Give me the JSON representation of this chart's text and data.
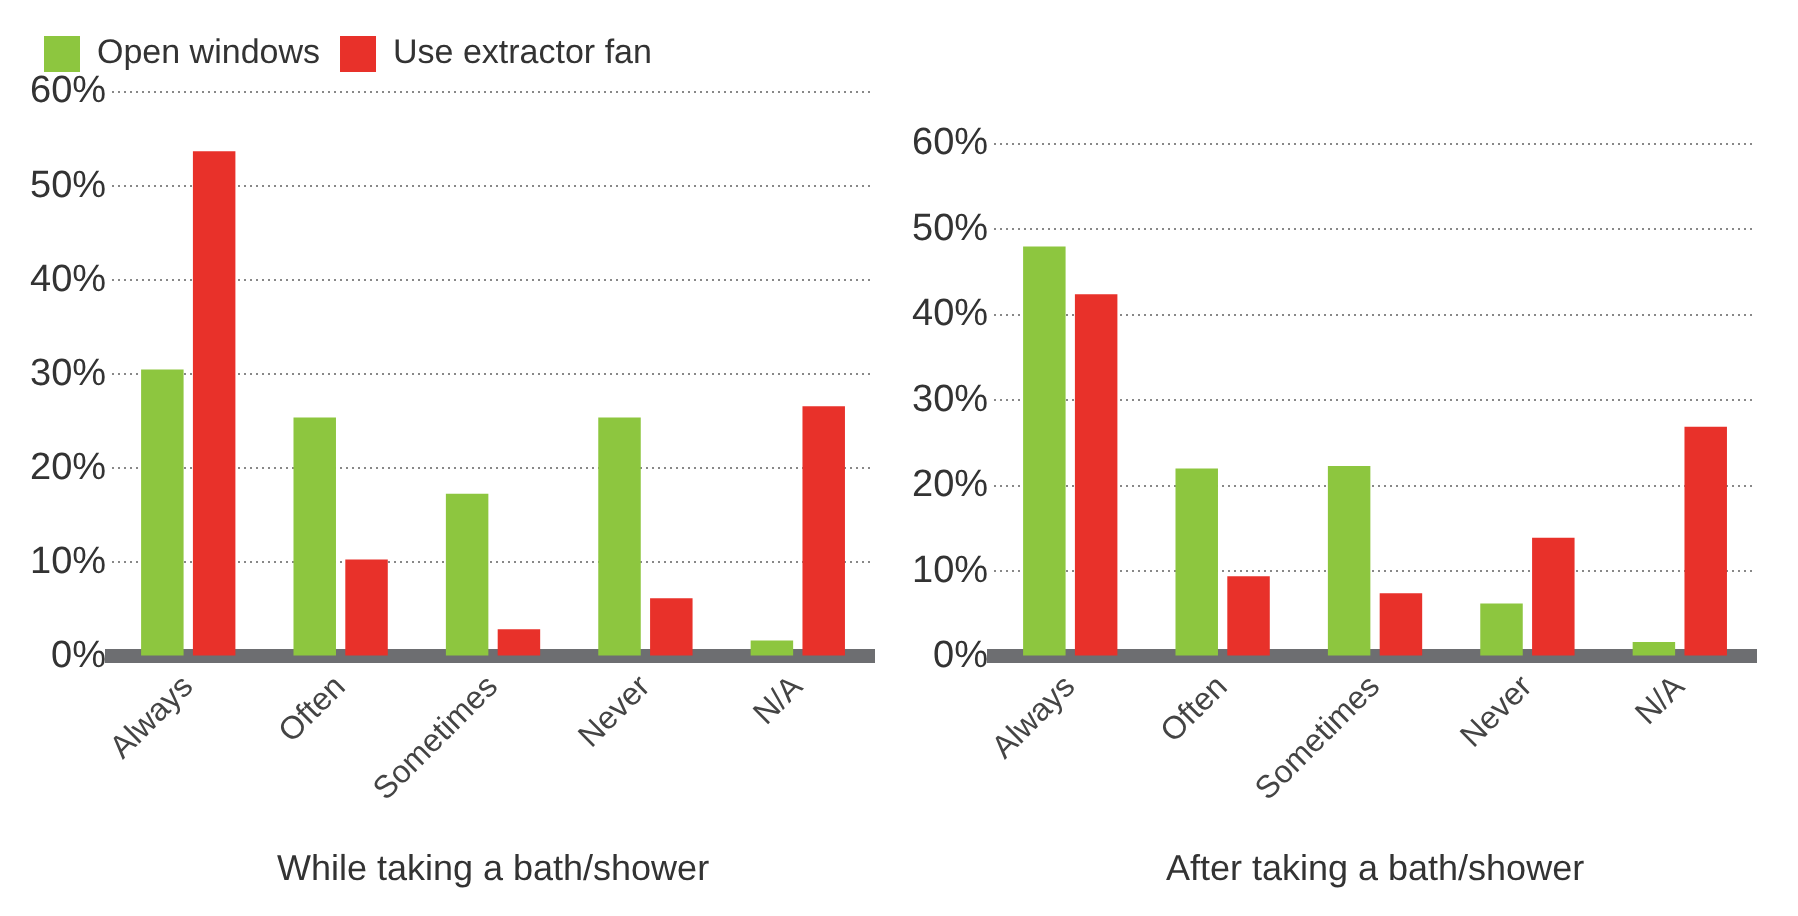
{
  "chart_data": [
    {
      "type": "bar",
      "xlabel": "While taking a bath/shower",
      "categories": [
        "Always",
        "Often",
        "Sometimes",
        "Never",
        "N/A"
      ],
      "ylim": [
        0,
        60
      ],
      "yticks": [
        {
          "value": 0,
          "label": "0%"
        },
        {
          "value": 10,
          "label": "10%"
        },
        {
          "value": 20,
          "label": "20%"
        },
        {
          "value": 30,
          "label": "30%"
        },
        {
          "value": 40,
          "label": "40%"
        },
        {
          "value": 50,
          "label": "50%"
        },
        {
          "value": 60,
          "label": "60%"
        }
      ],
      "grid": "y",
      "legend": "top left",
      "series": [
        {
          "name": "Open windows",
          "color": "#8dc63f",
          "values": [
            30.5,
            25.4,
            17.3,
            25.4,
            1.7
          ]
        },
        {
          "name": "Use extractor fan",
          "color": "#e8312a",
          "values": [
            53.7,
            10.3,
            2.9,
            6.2,
            26.6
          ]
        }
      ]
    },
    {
      "type": "bar",
      "xlabel": "After taking a bath/shower",
      "categories": [
        "Always",
        "Often",
        "Sometimes",
        "Never",
        "N/A"
      ],
      "ylim": [
        0,
        60
      ],
      "yticks": [
        {
          "value": 0,
          "label": "0%"
        },
        {
          "value": 10,
          "label": "10%"
        },
        {
          "value": 20,
          "label": "20%"
        },
        {
          "value": 30,
          "label": "30%"
        },
        {
          "value": 40,
          "label": "40%"
        },
        {
          "value": 50,
          "label": "50%"
        },
        {
          "value": 60,
          "label": "60%"
        }
      ],
      "grid": "y",
      "series": [
        {
          "color": "#8dc63f",
          "values": [
            48,
            22,
            22.3,
            6.2,
            1.7
          ]
        },
        {
          "color": "#e8312a",
          "values": [
            42.4,
            9.4,
            7.4,
            13.9,
            26.9
          ]
        }
      ]
    }
  ]
}
